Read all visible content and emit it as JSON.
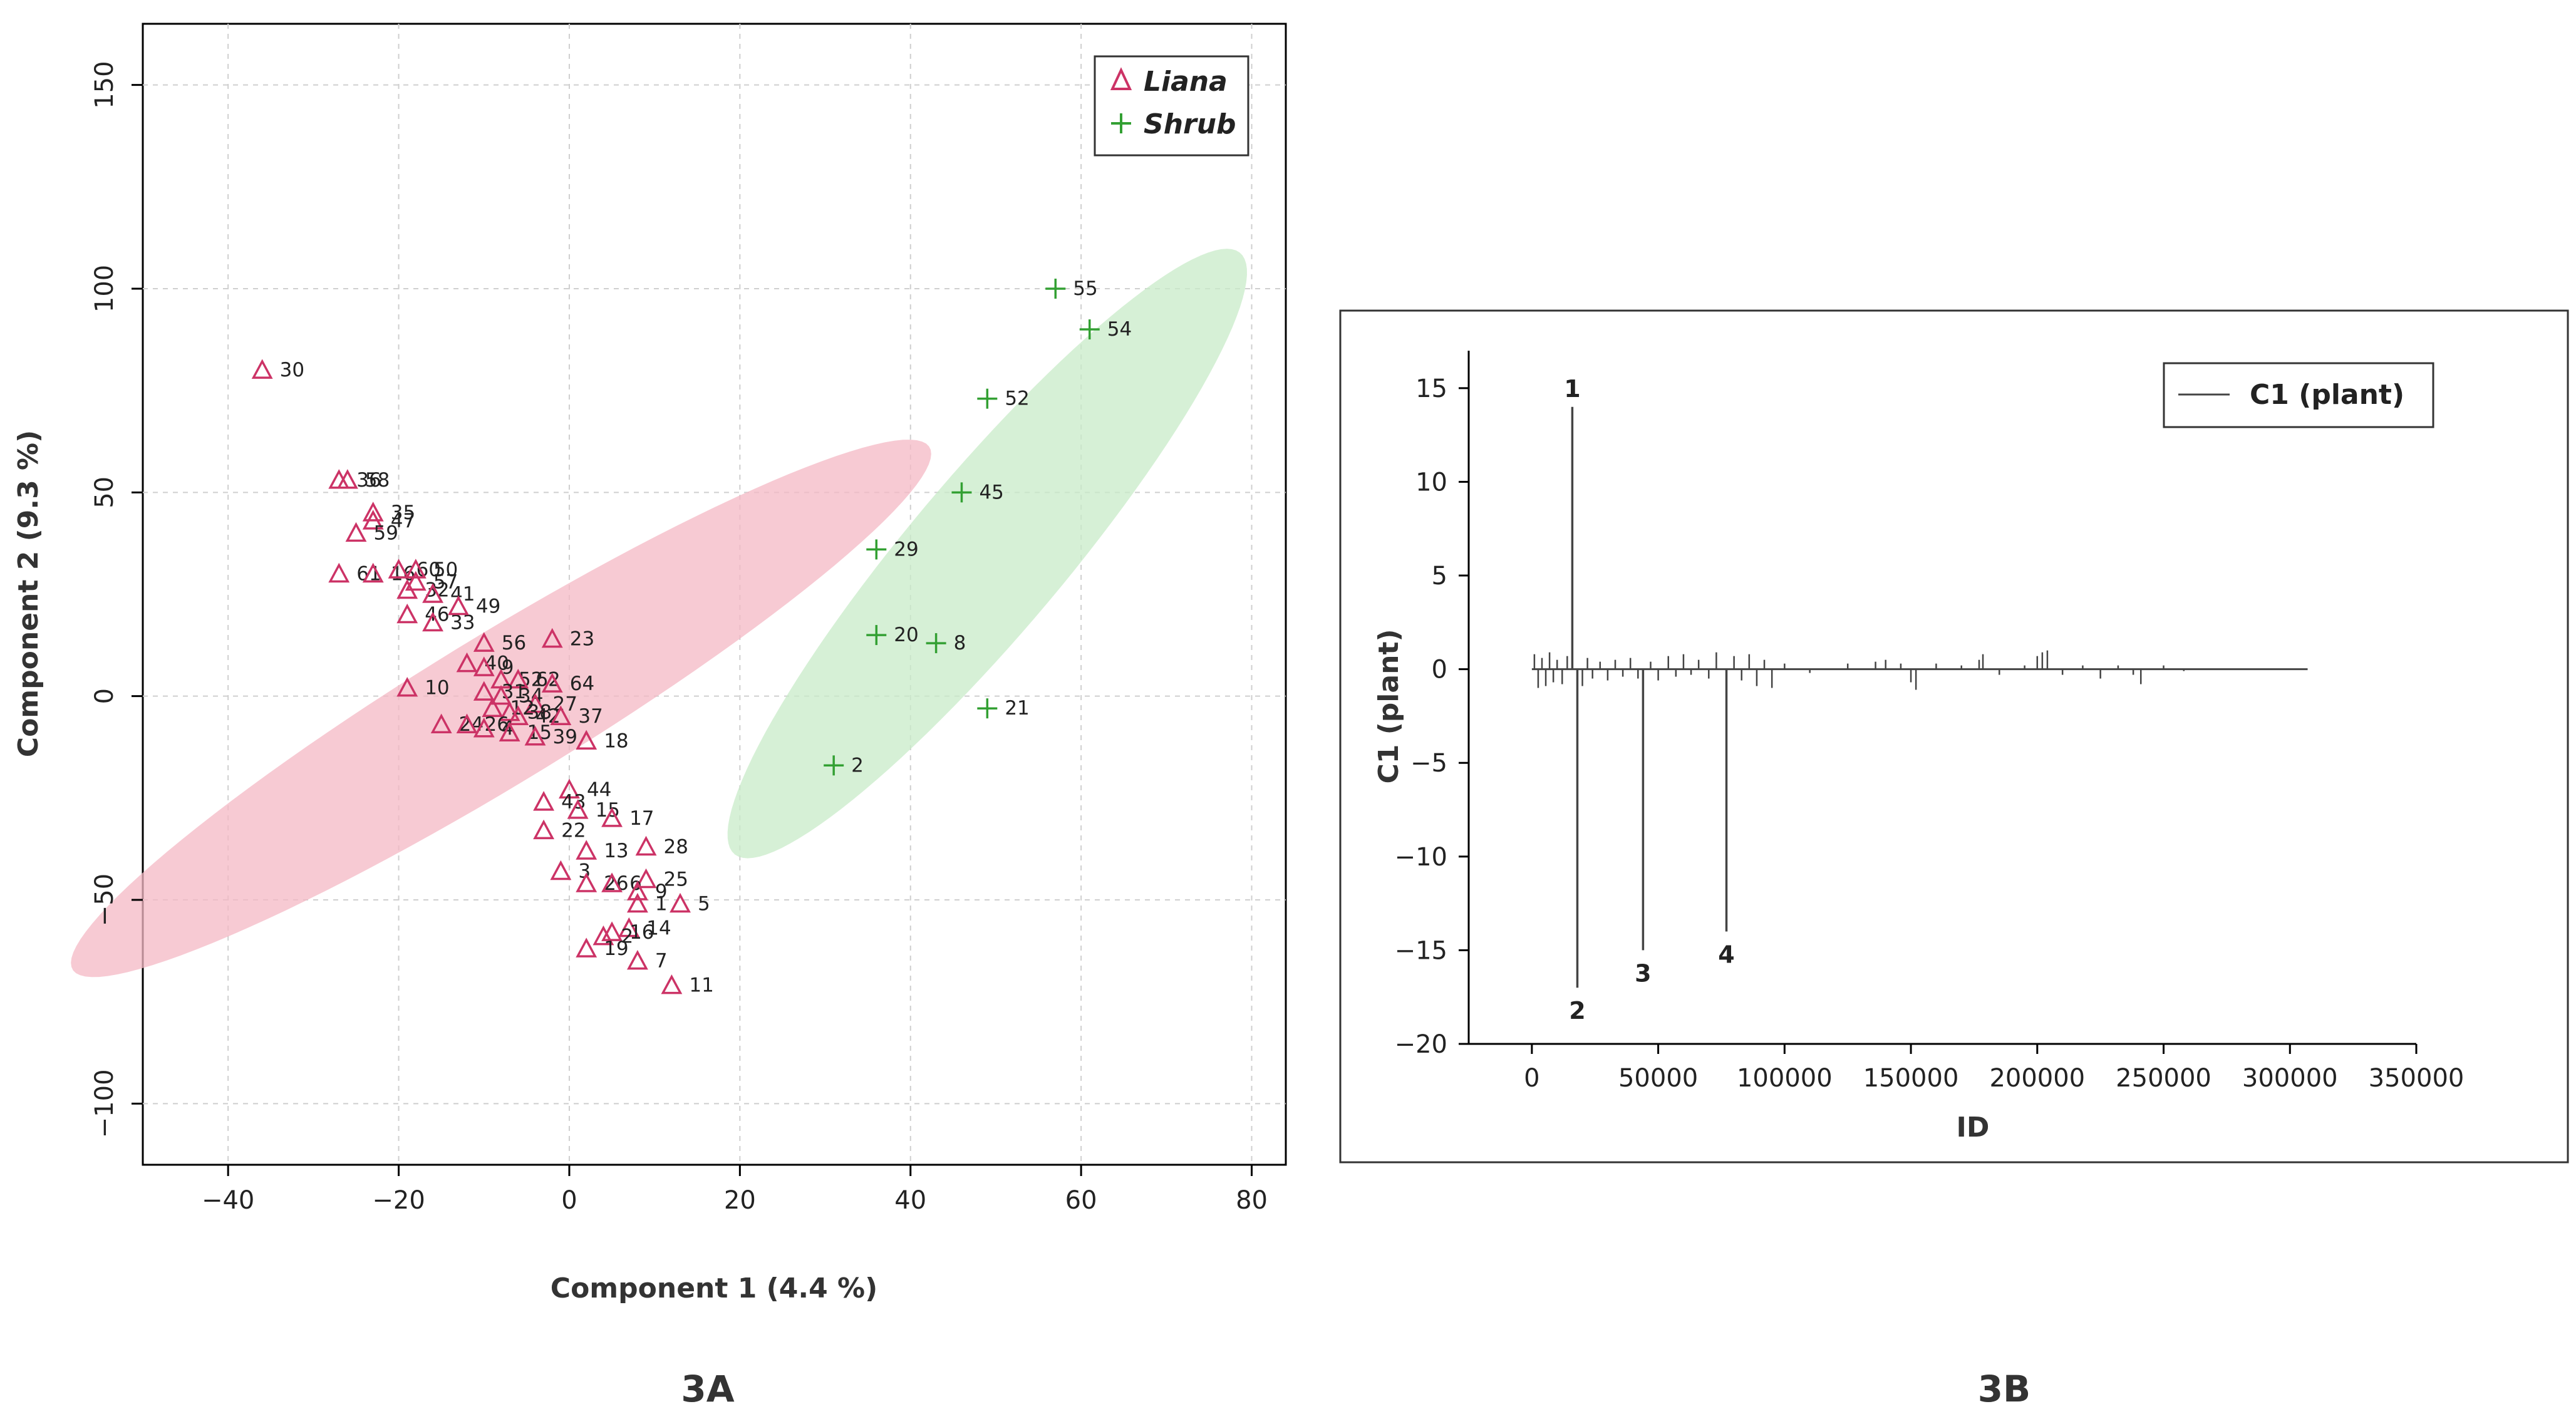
{
  "chart_data": [
    {
      "panel": "3A",
      "type": "scatter",
      "xlabel": "Component 1 (4.4 %)",
      "ylabel": "Component 2 (9.3 %)",
      "xlim": [
        -50,
        84
      ],
      "ylim": [
        -115,
        165
      ],
      "xticks": [
        -40,
        -20,
        0,
        20,
        40,
        60,
        80
      ],
      "yticks": [
        -100,
        -50,
        0,
        50,
        100,
        150
      ],
      "xtick_labels": [
        "−40",
        "−20",
        "0",
        "20",
        "40",
        "60",
        "80"
      ],
      "ytick_labels": [
        "−100",
        "−50",
        "0",
        "50",
        "100",
        "150"
      ],
      "grid": true,
      "legend_position": "top-right",
      "ellipses": [
        {
          "series": "Liana",
          "color": "#f4b8c4",
          "cx": -8,
          "cy": -3,
          "rx": 82,
          "ry": 13,
          "angle_deg": 53
        },
        {
          "series": "Shrub",
          "color": "#c8ebc8",
          "cx": 49,
          "cy": 35,
          "rx": 80,
          "ry": 11,
          "angle_deg": 69
        }
      ],
      "series": [
        {
          "name": "Liana",
          "marker": "triangle",
          "color": "#cc3366",
          "points": [
            {
              "id": "30",
              "x": -36,
              "y": 80
            },
            {
              "id": "36",
              "x": -27,
              "y": 53
            },
            {
              "id": "58",
              "x": -26,
              "y": 53
            },
            {
              "id": "35",
              "x": -23,
              "y": 45
            },
            {
              "id": "47",
              "x": -23,
              "y": 43
            },
            {
              "id": "59",
              "x": -25,
              "y": 40
            },
            {
              "id": "61",
              "x": -27,
              "y": 30
            },
            {
              "id": "16",
              "x": -23,
              "y": 30
            },
            {
              "id": "60",
              "x": -20,
              "y": 31
            },
            {
              "id": "50",
              "x": -18,
              "y": 31
            },
            {
              "id": "57",
              "x": -18,
              "y": 28
            },
            {
              "id": "32",
              "x": -19,
              "y": 26
            },
            {
              "id": "41",
              "x": -16,
              "y": 25
            },
            {
              "id": "46",
              "x": -19,
              "y": 20
            },
            {
              "id": "33",
              "x": -16,
              "y": 18
            },
            {
              "id": "49",
              "x": -13,
              "y": 22
            },
            {
              "id": "56",
              "x": -10,
              "y": 13
            },
            {
              "id": "23",
              "x": -2,
              "y": 14
            },
            {
              "id": "40",
              "x": -12,
              "y": 8
            },
            {
              "id": "9",
              "x": -10,
              "y": 7
            },
            {
              "id": "52",
              "x": -8,
              "y": 4
            },
            {
              "id": "62",
              "x": -6,
              "y": 4
            },
            {
              "id": "64",
              "x": -2,
              "y": 3
            },
            {
              "id": "10",
              "x": -19,
              "y": 2
            },
            {
              "id": "31",
              "x": -10,
              "y": 1
            },
            {
              "id": "34",
              "x": -8,
              "y": 0
            },
            {
              "id": "27",
              "x": -4,
              "y": -2
            },
            {
              "id": "12",
              "x": -9,
              "y": -3
            },
            {
              "id": "38",
              "x": -7,
              "y": -4
            },
            {
              "id": "42",
              "x": -6,
              "y": -5
            },
            {
              "id": "37",
              "x": -1,
              "y": -5
            },
            {
              "id": "24",
              "x": -15,
              "y": -7
            },
            {
              "id": "26",
              "x": -12,
              "y": -7
            },
            {
              "id": "4",
              "x": -10,
              "y": -8
            },
            {
              "id": "15",
              "x": -7,
              "y": -9
            },
            {
              "id": "39",
              "x": -4,
              "y": -10
            },
            {
              "id": "18",
              "x": 2,
              "y": -11
            },
            {
              "id": "44",
              "x": 0,
              "y": -23
            },
            {
              "id": "43",
              "x": -3,
              "y": -26
            },
            {
              "id": "15b",
              "label": "15",
              "x": 1,
              "y": -28
            },
            {
              "id": "17",
              "x": 5,
              "y": -30
            },
            {
              "id": "22",
              "x": -3,
              "y": -33
            },
            {
              "id": "28",
              "x": 9,
              "y": -37
            },
            {
              "id": "13",
              "x": 2,
              "y": -38
            },
            {
              "id": "3",
              "x": -1,
              "y": -43
            },
            {
              "id": "25",
              "x": 9,
              "y": -45
            },
            {
              "id": "26b",
              "label": "26",
              "x": 2,
              "y": -46
            },
            {
              "id": "6",
              "x": 5,
              "y": -46
            },
            {
              "id": "9b",
              "label": "9",
              "x": 8,
              "y": -48
            },
            {
              "id": "1",
              "x": 8,
              "y": -51
            },
            {
              "id": "5",
              "x": 13,
              "y": -51
            },
            {
              "id": "14",
              "x": 7,
              "y": -57
            },
            {
              "id": "16b",
              "label": "16",
              "x": 5,
              "y": -58
            },
            {
              "id": "2",
              "x": 4,
              "y": -59
            },
            {
              "id": "19",
              "x": 2,
              "y": -62
            },
            {
              "id": "7",
              "x": 8,
              "y": -65
            },
            {
              "id": "11",
              "x": 12,
              "y": -71
            }
          ]
        },
        {
          "name": "Shrub",
          "marker": "plus",
          "color": "#33a033",
          "points": [
            {
              "id": "55",
              "x": 57,
              "y": 100
            },
            {
              "id": "54",
              "x": 61,
              "y": 90
            },
            {
              "id": "52",
              "x": 49,
              "y": 73
            },
            {
              "id": "45",
              "x": 46,
              "y": 50
            },
            {
              "id": "29",
              "x": 36,
              "y": 36
            },
            {
              "id": "20",
              "x": 36,
              "y": 15
            },
            {
              "id": "8",
              "x": 43,
              "y": 13
            },
            {
              "id": "21",
              "x": 49,
              "y": -3
            },
            {
              "id": "2",
              "x": 31,
              "y": -17
            }
          ]
        }
      ]
    },
    {
      "panel": "3B",
      "type": "line",
      "xlabel": "ID",
      "ylabel": "C1 (plant)",
      "xlim": [
        -25000,
        350000
      ],
      "ylim": [
        -20,
        17
      ],
      "xticks": [
        0,
        50000,
        100000,
        150000,
        200000,
        250000,
        300000,
        350000
      ],
      "yticks": [
        -20,
        -15,
        -10,
        -5,
        0,
        5,
        10,
        15
      ],
      "xtick_labels": [
        "0",
        "50000",
        "100000",
        "150000",
        "200000",
        "250000",
        "300000",
        "350000"
      ],
      "ytick_labels": [
        "−20",
        "−15",
        "−10",
        "−5",
        "0",
        "5",
        "10",
        "15"
      ],
      "grid": false,
      "legend_position": "top-right",
      "series": [
        {
          "name": "C1 (plant)",
          "color": "#444444",
          "baseline_range": [
            0,
            307000
          ]
        }
      ],
      "peaks": [
        {
          "label": "1",
          "x": 16000,
          "y": 14
        },
        {
          "label": "2",
          "x": 18000,
          "y": -17
        },
        {
          "label": "3",
          "x": 44000,
          "y": -15
        },
        {
          "label": "4",
          "x": 77000,
          "y": -14
        }
      ],
      "small_spikes": [
        [
          1000,
          0.8
        ],
        [
          2500,
          -1.0
        ],
        [
          4000,
          0.6
        ],
        [
          5500,
          -0.9
        ],
        [
          7000,
          0.9
        ],
        [
          8500,
          -0.7
        ],
        [
          10000,
          0.5
        ],
        [
          12000,
          -0.8
        ],
        [
          14000,
          0.7
        ],
        [
          20000,
          -0.9
        ],
        [
          22000,
          0.6
        ],
        [
          24000,
          -0.5
        ],
        [
          27000,
          0.4
        ],
        [
          30000,
          -0.6
        ],
        [
          33000,
          0.5
        ],
        [
          36000,
          -0.4
        ],
        [
          39000,
          0.6
        ],
        [
          42000,
          -0.5
        ],
        [
          47000,
          0.4
        ],
        [
          50000,
          -0.6
        ],
        [
          54000,
          0.7
        ],
        [
          57000,
          -0.4
        ],
        [
          60000,
          0.8
        ],
        [
          63000,
          -0.3
        ],
        [
          66000,
          0.5
        ],
        [
          70000,
          -0.5
        ],
        [
          73000,
          0.9
        ],
        [
          80000,
          0.7
        ],
        [
          83000,
          -0.6
        ],
        [
          86000,
          0.8
        ],
        [
          89000,
          -0.9
        ],
        [
          92000,
          0.5
        ],
        [
          95000,
          -1.0
        ],
        [
          100000,
          0.3
        ],
        [
          110000,
          -0.2
        ],
        [
          125000,
          0.3
        ],
        [
          136000,
          0.4
        ],
        [
          140000,
          0.5
        ],
        [
          146000,
          0.3
        ],
        [
          150000,
          -0.7
        ],
        [
          152000,
          -1.1
        ],
        [
          160000,
          0.3
        ],
        [
          170000,
          0.2
        ],
        [
          177000,
          0.5
        ],
        [
          178500,
          0.8
        ],
        [
          185000,
          -0.3
        ],
        [
          195000,
          0.2
        ],
        [
          200000,
          0.7
        ],
        [
          202000,
          0.9
        ],
        [
          204000,
          1.0
        ],
        [
          210000,
          -0.3
        ],
        [
          218000,
          0.2
        ],
        [
          225000,
          -0.5
        ],
        [
          232000,
          0.2
        ],
        [
          238000,
          -0.3
        ],
        [
          241000,
          -0.8
        ],
        [
          250000,
          0.2
        ],
        [
          258000,
          -0.1
        ]
      ]
    }
  ],
  "legend_3a": {
    "liana": "Liana",
    "shrub": "Shrub"
  },
  "legend_3b": {
    "label": "C1 (plant)"
  },
  "captions": {
    "a": "3A",
    "b": "3B"
  }
}
